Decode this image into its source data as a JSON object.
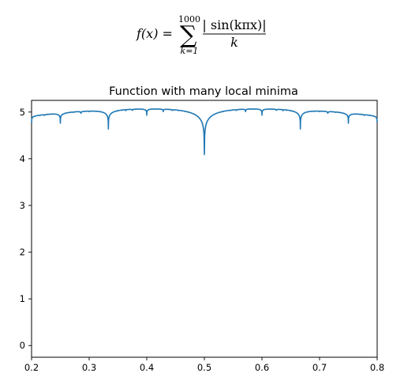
{
  "formula": {
    "lhs": "f(x) =",
    "sum_sign": "∑",
    "sum_upper": "1000",
    "sum_lower": "k=1",
    "numerator": "| sin(kπx)|",
    "denominator": "k"
  },
  "chart_data": {
    "type": "line",
    "title": "Function with many local minima",
    "xlabel": "",
    "ylabel": "",
    "xlim": [
      0.2,
      0.8
    ],
    "ylim": [
      -0.25,
      5.25
    ],
    "x_ticks": [
      0.2,
      0.3,
      0.4,
      0.5,
      0.6,
      0.7,
      0.8
    ],
    "x_tick_labels": [
      "0.2",
      "0.3",
      "0.4",
      "0.5",
      "0.6",
      "0.7",
      "0.8"
    ],
    "y_ticks": [
      0,
      1,
      2,
      3,
      4,
      5
    ],
    "y_tick_labels": [
      "0",
      "1",
      "2",
      "3",
      "4",
      "5"
    ],
    "grid": false,
    "series": [
      {
        "color": "#1f77b4",
        "formula": "sum_{k=1}^{1000} |sin(k*pi*x)|/k",
        "x": [
          0.2,
          0.8
        ],
        "y": [
          4.9,
          4.8
        ],
        "notable_points": {
          "x": [
            0.25,
            0.333,
            0.4,
            0.5,
            0.6,
            0.667,
            0.75
          ],
          "y": [
            4.8,
            4.67,
            4.98,
            4.18,
            4.98,
            4.67,
            4.8
          ]
        }
      }
    ]
  }
}
